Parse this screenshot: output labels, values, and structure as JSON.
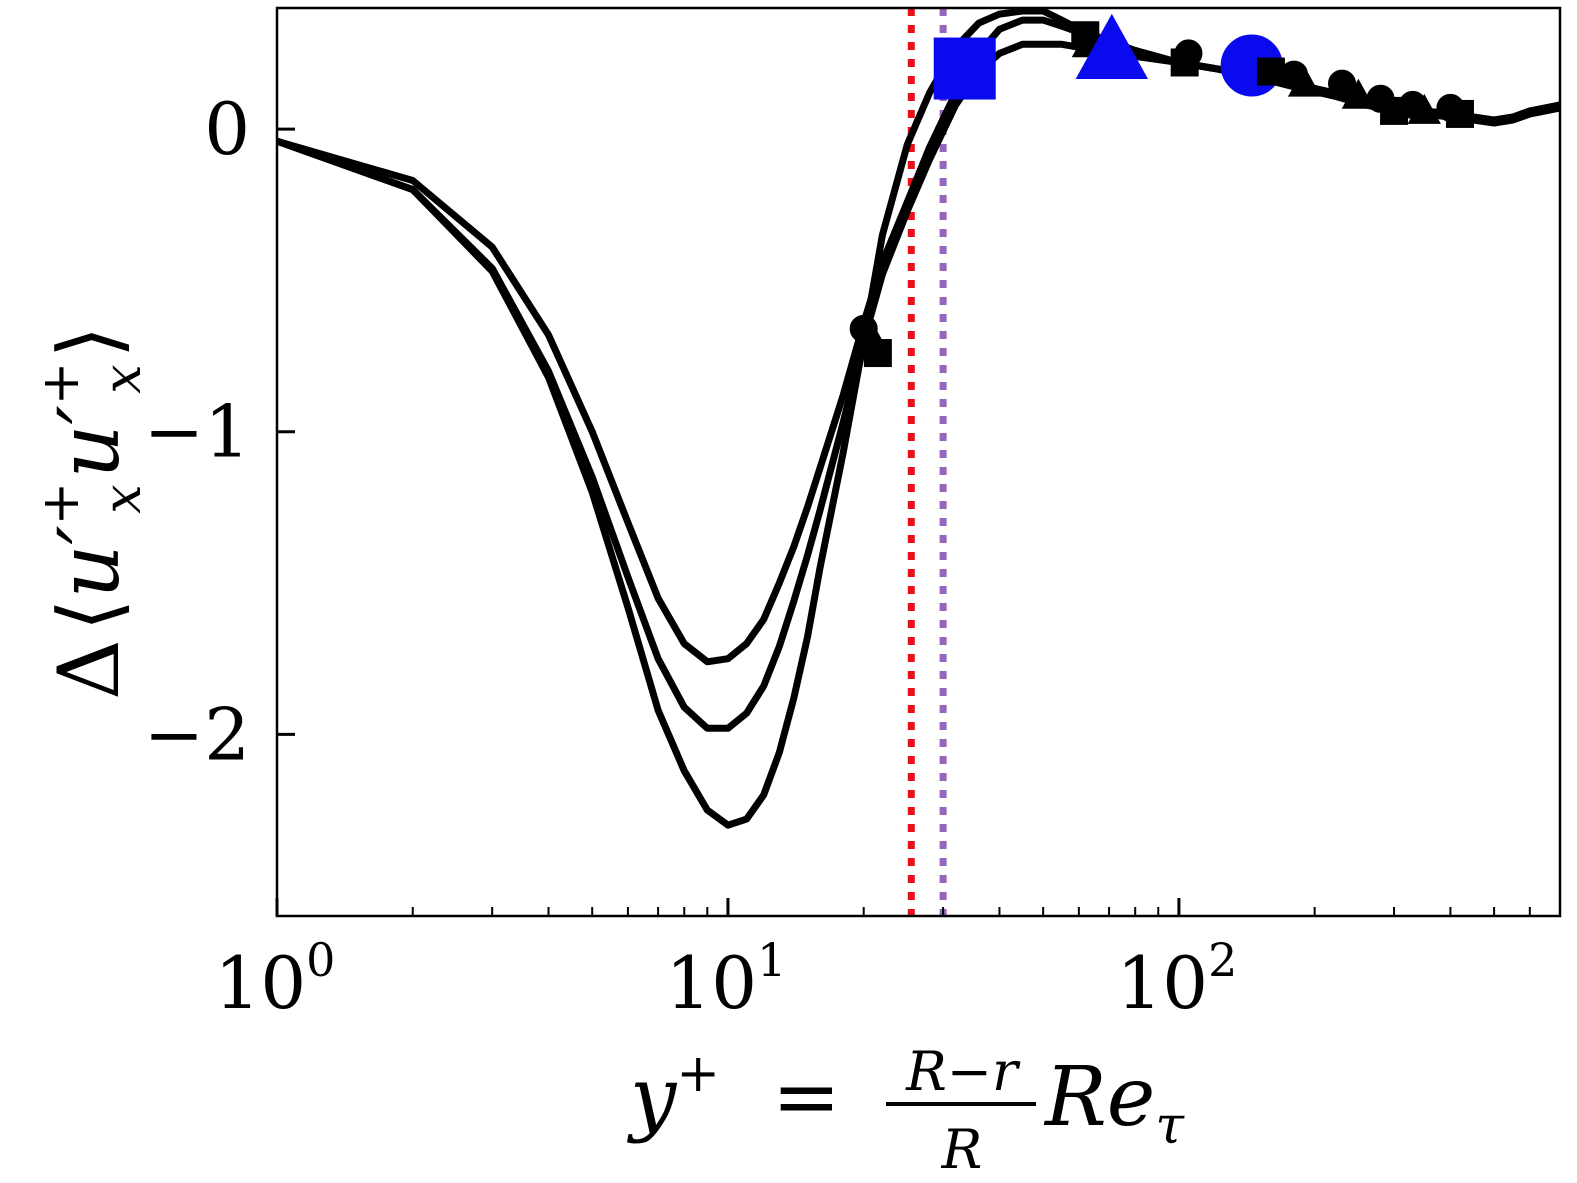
{
  "chart_data": {
    "type": "line",
    "title": "",
    "xlabel": "y⁺ = (R−r)/R Re_τ",
    "ylabel": "Δ⟨u′ₓ⁺ u′ₓ⁺⟩",
    "xlabel_parts": {
      "lhs": "y",
      "sup": "+",
      "eq": "=",
      "num": "R−r",
      "den": "R",
      "rhs": "Re",
      "sub": "τ"
    },
    "ylabel_parts": {
      "delta": "Δ",
      "open": "⟨",
      "u1": "u′",
      "s1": "x",
      "p1": "+",
      "u2": "u′",
      "s2": "x",
      "p2": "+",
      "close": "⟩"
    },
    "xscale": "log",
    "xlim": [
      1,
      700
    ],
    "ylim": [
      -2.6,
      0.4
    ],
    "grid": false,
    "legend": "none",
    "x_ticks": [
      {
        "value": 1,
        "base": "10",
        "exp": "0"
      },
      {
        "value": 10,
        "base": "10",
        "exp": "1"
      },
      {
        "value": 100,
        "base": "10",
        "exp": "2"
      }
    ],
    "y_ticks": [
      {
        "value": 0,
        "label": "0"
      },
      {
        "value": -1,
        "label": "−1"
      },
      {
        "value": -2,
        "label": "−2"
      }
    ],
    "vlines": [
      {
        "x": 25.5,
        "color": "#e8101a",
        "style": "dotted"
      },
      {
        "x": 30,
        "color": "#9467bd",
        "style": "dotted"
      }
    ],
    "series": [
      {
        "name": "curve-1",
        "color": "#000000",
        "x": [
          1,
          2,
          3,
          4,
          5,
          6,
          7,
          8,
          9,
          10,
          11,
          12,
          13,
          14,
          15,
          16,
          18,
          20,
          22,
          25,
          28,
          32,
          36,
          40,
          45,
          50,
          55,
          60,
          70,
          80,
          100,
          120,
          150,
          180,
          220,
          260,
          300,
          350,
          400,
          450,
          500,
          550,
          600,
          700
        ],
        "y": [
          -0.04,
          -0.17,
          -0.39,
          -0.68,
          -1.0,
          -1.3,
          -1.55,
          -1.7,
          -1.76,
          -1.75,
          -1.7,
          -1.62,
          -1.5,
          -1.38,
          -1.25,
          -1.12,
          -0.88,
          -0.64,
          -0.44,
          -0.24,
          -0.06,
          0.12,
          0.25,
          0.33,
          0.36,
          0.36,
          0.34,
          0.32,
          0.28,
          0.25,
          0.22,
          0.2,
          0.18,
          0.15,
          0.12,
          0.09,
          0.07,
          0.06,
          0.05,
          0.04,
          0.03,
          0.04,
          0.06,
          0.08
        ],
        "markers": [
          {
            "x": 20,
            "y": -0.66,
            "shape": "circle",
            "color": "#000000"
          },
          {
            "x": 62,
            "y": 0.31,
            "shape": "square",
            "color": "#000000"
          },
          {
            "x": 105,
            "y": 0.25,
            "shape": "circle",
            "color": "#000000"
          },
          {
            "x": 150,
            "y": 0.2,
            "shape": "circle",
            "color": "#000000"
          },
          {
            "x": 180,
            "y": 0.18,
            "shape": "circle",
            "color": "#000000"
          },
          {
            "x": 230,
            "y": 0.15,
            "shape": "circle",
            "color": "#000000"
          },
          {
            "x": 280,
            "y": 0.1,
            "shape": "circle",
            "color": "#000000"
          },
          {
            "x": 330,
            "y": 0.08,
            "shape": "circle",
            "color": "#000000"
          },
          {
            "x": 400,
            "y": 0.07,
            "shape": "circle",
            "color": "#000000"
          },
          {
            "x": 145,
            "y": 0.21,
            "shape": "circle",
            "color": "#0a0aee"
          }
        ]
      },
      {
        "name": "curve-2",
        "color": "#000000",
        "x": [
          1,
          2,
          3,
          4,
          5,
          6,
          7,
          8,
          9,
          10,
          11,
          12,
          13,
          14,
          15,
          16,
          18,
          20,
          22,
          25,
          28,
          32,
          36,
          40,
          45,
          50,
          55,
          60,
          70,
          80,
          100,
          120,
          150,
          180,
          220,
          260,
          300,
          350,
          400,
          450,
          500,
          550,
          600,
          700
        ],
        "y": [
          -0.04,
          -0.2,
          -0.46,
          -0.8,
          -1.15,
          -1.48,
          -1.75,
          -1.91,
          -1.98,
          -1.98,
          -1.93,
          -1.84,
          -1.71,
          -1.56,
          -1.41,
          -1.26,
          -0.97,
          -0.7,
          -0.48,
          -0.27,
          -0.1,
          0.08,
          0.19,
          0.25,
          0.28,
          0.28,
          0.28,
          0.27,
          0.26,
          0.24,
          0.22,
          0.2,
          0.17,
          0.14,
          0.11,
          0.08,
          0.06,
          0.05,
          0.04,
          0.03,
          0.02,
          0.03,
          0.05,
          0.07
        ],
        "markers": [
          {
            "x": 21,
            "y": -0.7,
            "shape": "triangle",
            "color": "#000000"
          },
          {
            "x": 63,
            "y": 0.28,
            "shape": "triangle",
            "color": "#000000"
          },
          {
            "x": 71,
            "y": 0.26,
            "shape": "triangle",
            "color": "#0a0aee"
          },
          {
            "x": 190,
            "y": 0.15,
            "shape": "triangle",
            "color": "#000000"
          },
          {
            "x": 250,
            "y": 0.11,
            "shape": "triangle",
            "color": "#000000"
          },
          {
            "x": 350,
            "y": 0.06,
            "shape": "triangle",
            "color": "#000000"
          }
        ]
      },
      {
        "name": "curve-3",
        "color": "#000000",
        "x": [
          1,
          2,
          3,
          4,
          5,
          6,
          7,
          8,
          9,
          10,
          11,
          12,
          13,
          14,
          15,
          16,
          18,
          20,
          22,
          25,
          28,
          32,
          36,
          40,
          45,
          50,
          55,
          60,
          70,
          80,
          100,
          120,
          150,
          180,
          220,
          260,
          300,
          350,
          400,
          450,
          500,
          550,
          600,
          700
        ],
        "y": [
          -0.04,
          -0.2,
          -0.47,
          -0.82,
          -1.2,
          -1.58,
          -1.92,
          -2.12,
          -2.25,
          -2.3,
          -2.28,
          -2.2,
          -2.06,
          -1.88,
          -1.68,
          -1.45,
          -1.07,
          -0.7,
          -0.35,
          -0.05,
          0.12,
          0.27,
          0.35,
          0.38,
          0.39,
          0.39,
          0.36,
          0.33,
          0.29,
          0.26,
          0.22,
          0.2,
          0.17,
          0.14,
          0.11,
          0.08,
          0.06,
          0.05,
          0.04,
          0.03,
          0.03,
          0.03,
          0.05,
          0.07
        ],
        "markers": [
          {
            "x": 21.5,
            "y": -0.74,
            "shape": "square",
            "color": "#000000"
          },
          {
            "x": 103,
            "y": 0.22,
            "shape": "square",
            "color": "#000000"
          },
          {
            "x": 33.5,
            "y": 0.2,
            "shape": "square",
            "color": "#0a0aee"
          },
          {
            "x": 160,
            "y": 0.19,
            "shape": "square",
            "color": "#000000"
          },
          {
            "x": 300,
            "y": 0.06,
            "shape": "square",
            "color": "#000000"
          },
          {
            "x": 420,
            "y": 0.05,
            "shape": "square",
            "color": "#000000"
          }
        ]
      }
    ]
  }
}
